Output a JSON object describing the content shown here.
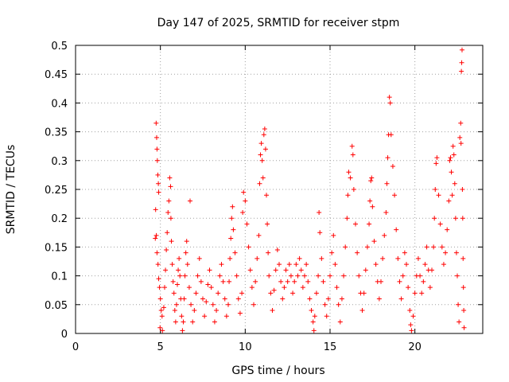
{
  "chart_data": {
    "type": "scatter",
    "title": "Day 147 of 2025, SRMTID for receiver stpm",
    "xlabel": "GPS time / hours",
    "ylabel": "SRMTID / TECUs",
    "xlim": [
      0,
      24
    ],
    "ylim": [
      0,
      0.5
    ],
    "xticks": [
      0,
      5,
      10,
      15,
      20
    ],
    "xtick_labels": [
      "0",
      "5",
      "10",
      "15",
      "20"
    ],
    "yticks": [
      0,
      0.05,
      0.1,
      0.15,
      0.2,
      0.25,
      0.3,
      0.35,
      0.4,
      0.45,
      0.5
    ],
    "ytick_labels": [
      "0",
      "0.05",
      "0.1",
      "0.15",
      "0.2",
      "0.25",
      "0.3",
      "0.35",
      "0.4",
      "0.45",
      "0.5"
    ],
    "grid": true,
    "marker": "plus",
    "color": "#ff0000",
    "series": [
      {
        "name": "SRMTID",
        "points": [
          [
            4.75,
            0.365
          ],
          [
            4.78,
            0.34
          ],
          [
            4.8,
            0.32
          ],
          [
            4.82,
            0.3
          ],
          [
            4.85,
            0.275
          ],
          [
            4.88,
            0.26
          ],
          [
            4.9,
            0.245
          ],
          [
            4.72,
            0.215
          ],
          [
            4.7,
            0.165
          ],
          [
            4.76,
            0.17
          ],
          [
            4.8,
            0.14
          ],
          [
            4.86,
            0.12
          ],
          [
            4.9,
            0.095
          ],
          [
            4.95,
            0.08
          ],
          [
            5.0,
            0.06
          ],
          [
            5.05,
            0.04
          ],
          [
            5.1,
            0.03
          ],
          [
            4.98,
            0.01
          ],
          [
            5.12,
            0.005
          ],
          [
            5.2,
            0.045
          ],
          [
            5.25,
            0.08
          ],
          [
            5.3,
            0.11
          ],
          [
            5.35,
            0.145
          ],
          [
            5.4,
            0.175
          ],
          [
            5.45,
            0.21
          ],
          [
            5.5,
            0.23
          ],
          [
            5.55,
            0.27
          ],
          [
            5.6,
            0.255
          ],
          [
            5.62,
            0.2
          ],
          [
            5.65,
            0.16
          ],
          [
            5.7,
            0.12
          ],
          [
            5.75,
            0.09
          ],
          [
            5.8,
            0.07
          ],
          [
            5.85,
            0.04
          ],
          [
            5.9,
            0.02
          ],
          [
            5.95,
            0.05
          ],
          [
            6.0,
            0.085
          ],
          [
            6.05,
            0.11
          ],
          [
            6.1,
            0.13
          ],
          [
            6.15,
            0.1
          ],
          [
            6.2,
            0.06
          ],
          [
            6.25,
            0.03
          ],
          [
            6.3,
            0.005
          ],
          [
            6.35,
            0.02
          ],
          [
            6.4,
            0.06
          ],
          [
            6.45,
            0.1
          ],
          [
            6.5,
            0.14
          ],
          [
            6.55,
            0.16
          ],
          [
            6.6,
            0.12
          ],
          [
            6.7,
            0.08
          ],
          [
            6.75,
            0.23
          ],
          [
            6.8,
            0.05
          ],
          [
            6.9,
            0.02
          ],
          [
            7.0,
            0.04
          ],
          [
            7.1,
            0.07
          ],
          [
            7.2,
            0.1
          ],
          [
            7.3,
            0.13
          ],
          [
            7.4,
            0.09
          ],
          [
            7.5,
            0.06
          ],
          [
            7.6,
            0.03
          ],
          [
            7.7,
            0.055
          ],
          [
            7.8,
            0.085
          ],
          [
            7.9,
            0.11
          ],
          [
            8.0,
            0.08
          ],
          [
            8.1,
            0.05
          ],
          [
            8.2,
            0.02
          ],
          [
            8.3,
            0.04
          ],
          [
            8.4,
            0.07
          ],
          [
            8.5,
            0.1
          ],
          [
            8.6,
            0.12
          ],
          [
            8.7,
            0.09
          ],
          [
            8.8,
            0.06
          ],
          [
            8.9,
            0.03
          ],
          [
            9.0,
            0.05
          ],
          [
            9.05,
            0.09
          ],
          [
            9.1,
            0.13
          ],
          [
            9.15,
            0.165
          ],
          [
            9.2,
            0.2
          ],
          [
            9.25,
            0.22
          ],
          [
            9.3,
            0.18
          ],
          [
            9.4,
            0.14
          ],
          [
            9.5,
            0.1
          ],
          [
            9.6,
            0.06
          ],
          [
            9.7,
            0.035
          ],
          [
            9.8,
            0.07
          ],
          [
            9.85,
            0.21
          ],
          [
            9.9,
            0.245
          ],
          [
            10.0,
            0.23
          ],
          [
            10.1,
            0.19
          ],
          [
            10.2,
            0.15
          ],
          [
            10.3,
            0.11
          ],
          [
            10.4,
            0.08
          ],
          [
            10.5,
            0.05
          ],
          [
            10.6,
            0.09
          ],
          [
            10.7,
            0.13
          ],
          [
            10.8,
            0.17
          ],
          [
            10.85,
            0.26
          ],
          [
            10.9,
            0.31
          ],
          [
            10.95,
            0.33
          ],
          [
            11.0,
            0.3
          ],
          [
            11.05,
            0.27
          ],
          [
            11.1,
            0.345
          ],
          [
            11.15,
            0.355
          ],
          [
            11.2,
            0.32
          ],
          [
            11.25,
            0.24
          ],
          [
            11.3,
            0.19
          ],
          [
            11.35,
            0.14
          ],
          [
            11.4,
            0.1
          ],
          [
            11.5,
            0.07
          ],
          [
            11.6,
            0.04
          ],
          [
            11.7,
            0.075
          ],
          [
            11.8,
            0.11
          ],
          [
            11.9,
            0.145
          ],
          [
            12.0,
            0.12
          ],
          [
            12.1,
            0.09
          ],
          [
            12.2,
            0.06
          ],
          [
            12.3,
            0.08
          ],
          [
            12.4,
            0.11
          ],
          [
            12.5,
            0.09
          ],
          [
            12.6,
            0.12
          ],
          [
            12.7,
            0.1
          ],
          [
            12.8,
            0.07
          ],
          [
            12.9,
            0.09
          ],
          [
            13.0,
            0.12
          ],
          [
            13.1,
            0.1
          ],
          [
            13.2,
            0.13
          ],
          [
            13.3,
            0.11
          ],
          [
            13.4,
            0.08
          ],
          [
            13.5,
            0.1
          ],
          [
            13.6,
            0.12
          ],
          [
            13.7,
            0.09
          ],
          [
            13.8,
            0.06
          ],
          [
            13.9,
            0.04
          ],
          [
            14.0,
            0.02
          ],
          [
            14.05,
            0.005
          ],
          [
            14.1,
            0.03
          ],
          [
            14.2,
            0.07
          ],
          [
            14.3,
            0.1
          ],
          [
            14.35,
            0.21
          ],
          [
            14.4,
            0.175
          ],
          [
            14.5,
            0.13
          ],
          [
            14.6,
            0.09
          ],
          [
            14.7,
            0.05
          ],
          [
            14.8,
            0.03
          ],
          [
            14.9,
            0.06
          ],
          [
            15.0,
            0.1
          ],
          [
            15.1,
            0.14
          ],
          [
            15.2,
            0.17
          ],
          [
            15.3,
            0.12
          ],
          [
            15.4,
            0.08
          ],
          [
            15.5,
            0.05
          ],
          [
            15.6,
            0.02
          ],
          [
            15.7,
            0.06
          ],
          [
            15.8,
            0.1
          ],
          [
            15.9,
            0.15
          ],
          [
            16.0,
            0.2
          ],
          [
            16.05,
            0.24
          ],
          [
            16.1,
            0.28
          ],
          [
            16.2,
            0.27
          ],
          [
            16.3,
            0.325
          ],
          [
            16.35,
            0.31
          ],
          [
            16.4,
            0.25
          ],
          [
            16.5,
            0.19
          ],
          [
            16.6,
            0.14
          ],
          [
            16.7,
            0.1
          ],
          [
            16.8,
            0.07
          ],
          [
            16.9,
            0.04
          ],
          [
            17.0,
            0.07
          ],
          [
            17.1,
            0.11
          ],
          [
            17.2,
            0.15
          ],
          [
            17.3,
            0.19
          ],
          [
            17.35,
            0.23
          ],
          [
            17.4,
            0.265
          ],
          [
            17.45,
            0.27
          ],
          [
            17.5,
            0.22
          ],
          [
            17.6,
            0.16
          ],
          [
            17.7,
            0.12
          ],
          [
            17.8,
            0.09
          ],
          [
            17.9,
            0.06
          ],
          [
            18.0,
            0.09
          ],
          [
            18.1,
            0.13
          ],
          [
            18.2,
            0.17
          ],
          [
            18.3,
            0.21
          ],
          [
            18.35,
            0.26
          ],
          [
            18.4,
            0.305
          ],
          [
            18.45,
            0.345
          ],
          [
            18.5,
            0.41
          ],
          [
            18.55,
            0.4
          ],
          [
            18.6,
            0.345
          ],
          [
            18.7,
            0.29
          ],
          [
            18.8,
            0.24
          ],
          [
            18.9,
            0.18
          ],
          [
            19.0,
            0.13
          ],
          [
            19.1,
            0.09
          ],
          [
            19.2,
            0.06
          ],
          [
            19.3,
            0.1
          ],
          [
            19.4,
            0.14
          ],
          [
            19.5,
            0.12
          ],
          [
            19.6,
            0.08
          ],
          [
            19.7,
            0.04
          ],
          [
            19.75,
            0.015
          ],
          [
            19.8,
            0.005
          ],
          [
            19.9,
            0.03
          ],
          [
            20.0,
            0.07
          ],
          [
            20.1,
            0.1
          ],
          [
            20.2,
            0.13
          ],
          [
            20.3,
            0.1
          ],
          [
            20.4,
            0.07
          ],
          [
            20.5,
            0.09
          ],
          [
            20.6,
            0.12
          ],
          [
            20.7,
            0.15
          ],
          [
            20.8,
            0.11
          ],
          [
            20.9,
            0.08
          ],
          [
            21.0,
            0.11
          ],
          [
            21.1,
            0.15
          ],
          [
            21.15,
            0.2
          ],
          [
            21.2,
            0.25
          ],
          [
            21.25,
            0.295
          ],
          [
            21.3,
            0.305
          ],
          [
            21.4,
            0.24
          ],
          [
            21.5,
            0.19
          ],
          [
            21.6,
            0.15
          ],
          [
            21.7,
            0.12
          ],
          [
            21.8,
            0.14
          ],
          [
            21.9,
            0.18
          ],
          [
            22.0,
            0.23
          ],
          [
            22.05,
            0.3
          ],
          [
            22.1,
            0.305
          ],
          [
            22.15,
            0.28
          ],
          [
            22.2,
            0.24
          ],
          [
            22.25,
            0.325
          ],
          [
            22.3,
            0.31
          ],
          [
            22.35,
            0.26
          ],
          [
            22.4,
            0.2
          ],
          [
            22.45,
            0.14
          ],
          [
            22.5,
            0.1
          ],
          [
            22.55,
            0.05
          ],
          [
            22.6,
            0.02
          ],
          [
            22.65,
            0.34
          ],
          [
            22.7,
            0.365
          ],
          [
            22.72,
            0.33
          ],
          [
            22.74,
            0.455
          ],
          [
            22.76,
            0.47
          ],
          [
            22.78,
            0.492
          ],
          [
            22.8,
            0.25
          ],
          [
            22.82,
            0.2
          ],
          [
            22.84,
            0.13
          ],
          [
            22.86,
            0.08
          ],
          [
            22.88,
            0.04
          ],
          [
            22.9,
            0.01
          ]
        ]
      }
    ]
  }
}
